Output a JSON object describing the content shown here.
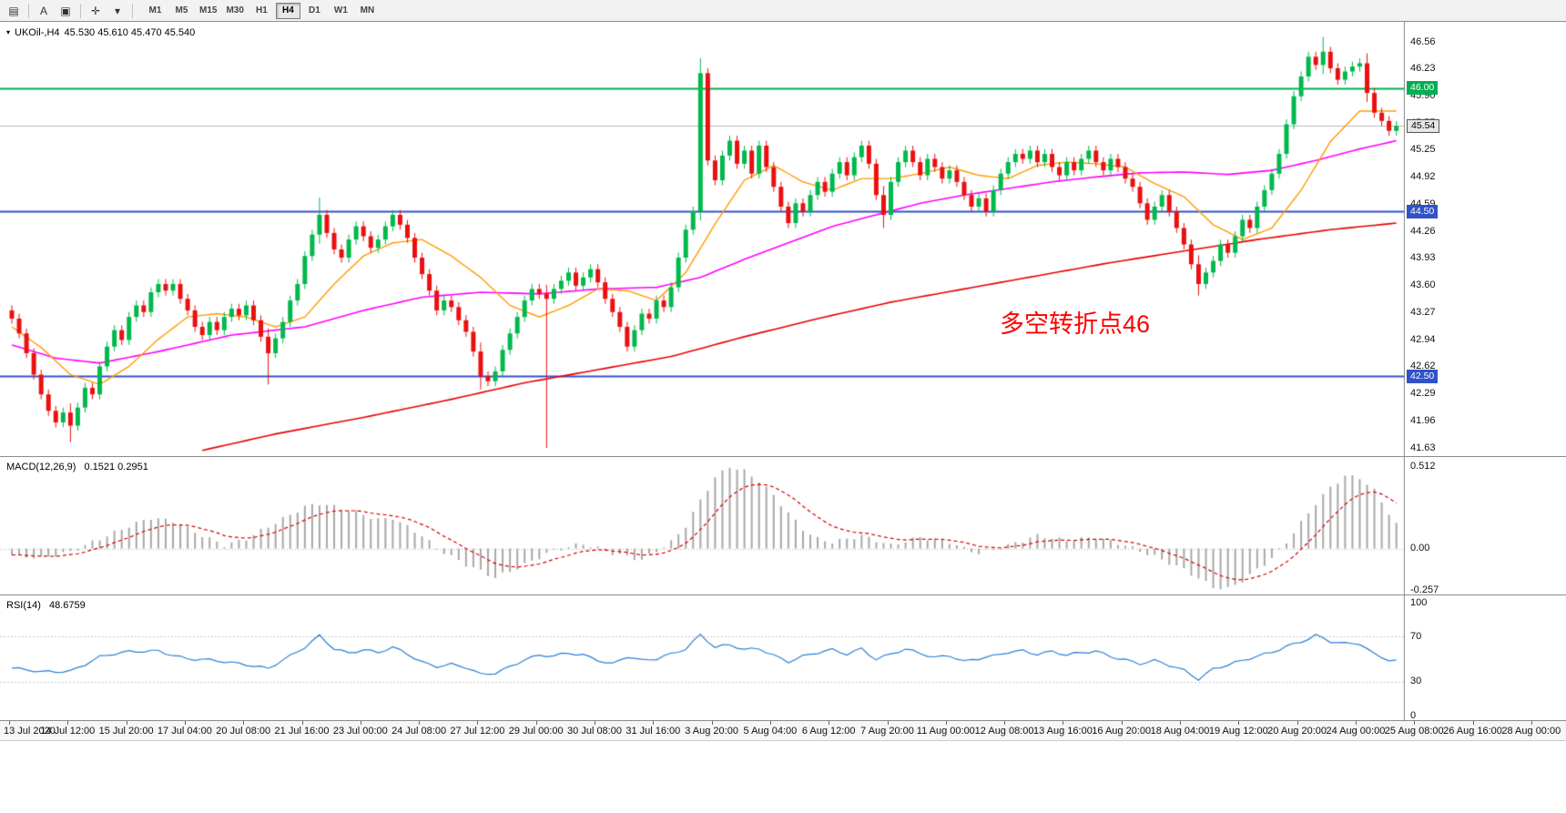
{
  "toolbar": {
    "icons": [
      {
        "name": "grid-icon",
        "glyph": "▤"
      },
      {
        "name": "text-annotation-icon",
        "glyph": "A"
      },
      {
        "name": "frame-tool-icon",
        "glyph": "▣"
      },
      {
        "name": "crosshair-icon",
        "glyph": "✛"
      },
      {
        "name": "dropdown-arrow-icon",
        "glyph": "▾"
      }
    ],
    "timeframes": [
      "M1",
      "M5",
      "M15",
      "M30",
      "H1",
      "H4",
      "D1",
      "W1",
      "MN"
    ],
    "active_timeframe": "H4"
  },
  "chart_header": {
    "symbol": "UKOil-,H4",
    "ohlc": "45.530 45.610 45.470 45.540"
  },
  "annotation": {
    "text": "多空转折点46",
    "color": "#ff0000"
  },
  "price_scale": {
    "labels": [
      "46.56",
      "46.23",
      "45.90",
      "45.57",
      "45.25",
      "44.92",
      "44.59",
      "44.26",
      "43.93",
      "43.60",
      "43.27",
      "42.94",
      "42.62",
      "42.29",
      "41.96",
      "41.63"
    ],
    "tags": [
      {
        "name": "resistance-line-price-tag",
        "text": "46.00",
        "bg": "#00b050",
        "fg": "#ffffff"
      },
      {
        "name": "support-line-price-tag",
        "text": "44.50",
        "bg": "#3052c8",
        "fg": "#ffffff"
      },
      {
        "name": "support-line-price-tag-2",
        "text": "42.50",
        "bg": "#3052c8",
        "fg": "#ffffff"
      },
      {
        "name": "current-price-tag",
        "text": "45.54",
        "bg": "#e6e6e6",
        "fg": "#000000",
        "border": "#555555"
      }
    ]
  },
  "hlines": [
    {
      "price": 46.0,
      "color": "#00b050",
      "width": 2
    },
    {
      "price": 44.5,
      "color": "#3052c8",
      "width": 2
    },
    {
      "price": 42.5,
      "color": "#3052c8",
      "width": 2
    },
    {
      "price": 45.54,
      "color": "#b8b8b8",
      "width": 1
    }
  ],
  "macd_panel": {
    "label": "MACD(12,26,9)",
    "values": "0.1521 0.2951",
    "scale_labels": [
      "0.512",
      "0.00",
      "-0.257"
    ],
    "scale_values": [
      0.512,
      0,
      -0.257
    ]
  },
  "rsi_panel": {
    "label": "RSI(14)",
    "value": "48.6759",
    "scale_labels": [
      "100",
      "70",
      "30",
      "0"
    ],
    "scale_values": [
      100,
      70,
      30,
      0
    ],
    "levels": [
      70,
      30
    ]
  },
  "time_axis": {
    "labels": [
      "13 Jul 2020",
      "14 Jul 12:00",
      "15 Jul 20:00",
      "17 Jul 04:00",
      "20 Jul 08:00",
      "21 Jul 16:00",
      "23 Jul 00:00",
      "24 Jul 08:00",
      "27 Jul 12:00",
      "29 Jul 00:00",
      "30 Jul 08:00",
      "31 Jul 16:00",
      "3 Aug 20:00",
      "5 Aug 04:00",
      "6 Aug 12:00",
      "7 Aug 20:00",
      "11 Aug 00:00",
      "12 Aug 08:00",
      "13 Aug 16:00",
      "16 Aug 20:00",
      "18 Aug 04:00",
      "19 Aug 12:00",
      "20 Aug 20:00",
      "24 Aug 00:00",
      "25 Aug 08:00",
      "26 Aug 16:00",
      "28 Aug 00:00"
    ]
  },
  "colors": {
    "up": "#00b84c",
    "down": "#ea1010",
    "bg": "#ffffff",
    "separator": "#8c8c8c"
  },
  "chart_data": {
    "type": "candlestick",
    "symbol": "UKOil-",
    "timeframe": "H4",
    "current_ohlc": {
      "open": 45.53,
      "high": 45.61,
      "low": 45.47,
      "close": 45.54
    },
    "y_range": [
      41.63,
      46.56
    ],
    "first_open": 43.3,
    "closes": [
      43.2,
      43.02,
      42.78,
      42.52,
      42.28,
      42.08,
      41.94,
      42.06,
      41.9,
      42.12,
      42.36,
      42.28,
      42.62,
      42.86,
      43.06,
      42.94,
      43.22,
      43.36,
      43.28,
      43.52,
      43.62,
      43.54,
      43.62,
      43.44,
      43.3,
      43.1,
      43.0,
      43.16,
      43.06,
      43.22,
      43.32,
      43.24,
      43.36,
      43.18,
      42.98,
      42.78,
      42.96,
      43.16,
      43.42,
      43.62,
      43.96,
      44.22,
      44.46,
      44.24,
      44.04,
      43.94,
      44.16,
      44.32,
      44.2,
      44.06,
      44.16,
      44.32,
      44.46,
      44.34,
      44.18,
      43.94,
      43.74,
      43.54,
      43.3,
      43.42,
      43.34,
      43.18,
      43.04,
      42.8,
      42.5,
      42.44,
      42.56,
      42.82,
      43.02,
      43.22,
      43.42,
      43.56,
      43.5,
      43.44,
      43.56,
      43.66,
      43.76,
      43.6,
      43.7,
      43.8,
      43.64,
      43.44,
      43.28,
      43.1,
      42.86,
      43.06,
      43.26,
      43.2,
      43.42,
      43.34,
      43.58,
      43.94,
      44.28,
      44.5,
      46.18,
      45.12,
      44.88,
      45.18,
      45.36,
      45.08,
      45.24,
      44.96,
      45.3,
      45.04,
      44.8,
      44.56,
      44.36,
      44.6,
      44.5,
      44.7,
      44.86,
      44.74,
      44.96,
      45.1,
      44.94,
      45.16,
      45.3,
      45.08,
      44.7,
      44.46,
      44.86,
      45.1,
      45.24,
      45.1,
      44.94,
      45.14,
      45.04,
      44.9,
      45.0,
      44.86,
      44.7,
      44.56,
      44.66,
      44.5,
      44.76,
      44.96,
      45.1,
      45.2,
      45.14,
      45.24,
      45.1,
      45.2,
      45.04,
      44.94,
      45.1,
      45.0,
      45.14,
      45.24,
      45.1,
      45.0,
      45.14,
      45.04,
      44.9,
      44.8,
      44.6,
      44.4,
      44.56,
      44.7,
      44.5,
      44.3,
      44.1,
      43.86,
      43.62,
      43.76,
      43.9,
      44.1,
      44.0,
      44.2,
      44.4,
      44.3,
      44.56,
      44.76,
      44.96,
      45.2,
      45.56,
      45.9,
      46.14,
      46.38,
      46.28,
      46.44,
      46.24,
      46.1,
      46.2,
      46.26,
      46.3,
      45.94,
      45.7,
      45.6,
      45.48,
      45.54
    ],
    "extra_wicks": {
      "8": [
        0.05,
        0.14
      ],
      "35": [
        0.04,
        0.32
      ],
      "42": [
        0.15,
        0.05
      ],
      "64": [
        0.05,
        0.1
      ],
      "73": [
        0.05,
        1.75
      ],
      "94": [
        0.12,
        0.05
      ],
      "119": [
        0.05,
        0.1
      ],
      "162": [
        0.05,
        0.08
      ],
      "179": [
        0.12,
        0.05
      ],
      "185": [
        0.06,
        0.05
      ]
    },
    "ma_orange": {
      "color": "#ff9a00",
      "points": [
        [
          0,
          43.1
        ],
        [
          4,
          42.85
        ],
        [
          8,
          42.52
        ],
        [
          12,
          42.4
        ],
        [
          16,
          42.62
        ],
        [
          20,
          42.95
        ],
        [
          24,
          43.22
        ],
        [
          28,
          43.26
        ],
        [
          32,
          43.22
        ],
        [
          36,
          43.1
        ],
        [
          40,
          43.22
        ],
        [
          44,
          43.62
        ],
        [
          48,
          43.96
        ],
        [
          52,
          44.12
        ],
        [
          56,
          44.16
        ],
        [
          60,
          43.96
        ],
        [
          64,
          43.7
        ],
        [
          68,
          43.36
        ],
        [
          72,
          43.22
        ],
        [
          76,
          43.36
        ],
        [
          80,
          43.56
        ],
        [
          84,
          43.54
        ],
        [
          88,
          43.42
        ],
        [
          92,
          43.76
        ],
        [
          96,
          44.35
        ],
        [
          100,
          44.88
        ],
        [
          104,
          45.06
        ],
        [
          108,
          44.86
        ],
        [
          112,
          44.76
        ],
        [
          116,
          44.9
        ],
        [
          120,
          44.9
        ],
        [
          124,
          44.96
        ],
        [
          128,
          45.04
        ],
        [
          132,
          44.94
        ],
        [
          136,
          44.9
        ],
        [
          140,
          45.06
        ],
        [
          144,
          45.1
        ],
        [
          148,
          45.08
        ],
        [
          152,
          45.04
        ],
        [
          156,
          44.84
        ],
        [
          160,
          44.68
        ],
        [
          164,
          44.34
        ],
        [
          168,
          44.16
        ],
        [
          172,
          44.3
        ],
        [
          176,
          44.76
        ],
        [
          180,
          45.35
        ],
        [
          184,
          45.72
        ],
        [
          189,
          45.72
        ]
      ]
    },
    "ma_magenta": {
      "color": "#ff00ff",
      "points": [
        [
          0,
          42.88
        ],
        [
          6,
          42.72
        ],
        [
          12,
          42.66
        ],
        [
          20,
          42.8
        ],
        [
          30,
          43.0
        ],
        [
          40,
          43.1
        ],
        [
          48,
          43.3
        ],
        [
          56,
          43.46
        ],
        [
          64,
          43.52
        ],
        [
          72,
          43.5
        ],
        [
          80,
          43.56
        ],
        [
          88,
          43.58
        ],
        [
          94,
          43.7
        ],
        [
          100,
          43.92
        ],
        [
          106,
          44.12
        ],
        [
          112,
          44.32
        ],
        [
          118,
          44.46
        ],
        [
          124,
          44.6
        ],
        [
          130,
          44.7
        ],
        [
          136,
          44.78
        ],
        [
          142,
          44.86
        ],
        [
          148,
          44.92
        ],
        [
          154,
          44.97
        ],
        [
          160,
          44.98
        ],
        [
          166,
          44.95
        ],
        [
          172,
          45.0
        ],
        [
          178,
          45.12
        ],
        [
          184,
          45.26
        ],
        [
          189,
          45.36
        ]
      ]
    },
    "ma_red": {
      "color": "#e80000",
      "points": [
        [
          26,
          41.6
        ],
        [
          36,
          41.8
        ],
        [
          48,
          42.0
        ],
        [
          60,
          42.22
        ],
        [
          70,
          42.42
        ],
        [
          80,
          42.58
        ],
        [
          90,
          42.74
        ],
        [
          100,
          42.98
        ],
        [
          110,
          43.2
        ],
        [
          120,
          43.4
        ],
        [
          130,
          43.56
        ],
        [
          140,
          43.72
        ],
        [
          150,
          43.88
        ],
        [
          160,
          44.02
        ],
        [
          170,
          44.16
        ],
        [
          180,
          44.28
        ],
        [
          189,
          44.36
        ]
      ]
    },
    "macd": {
      "hist_color": "#a8a8a8",
      "signal_color": "#d40000",
      "signal_period": 9,
      "y_range": [
        -0.257,
        0.512
      ],
      "hist_points": [
        [
          0,
          -0.04
        ],
        [
          4,
          -0.06
        ],
        [
          8,
          -0.02
        ],
        [
          12,
          0.06
        ],
        [
          16,
          0.14
        ],
        [
          19,
          0.19
        ],
        [
          22,
          0.17
        ],
        [
          26,
          0.08
        ],
        [
          29,
          0.02
        ],
        [
          32,
          0.06
        ],
        [
          36,
          0.16
        ],
        [
          40,
          0.26
        ],
        [
          42,
          0.28
        ],
        [
          46,
          0.24
        ],
        [
          50,
          0.18
        ],
        [
          52,
          0.19
        ],
        [
          56,
          0.08
        ],
        [
          58,
          0
        ],
        [
          62,
          -0.1
        ],
        [
          66,
          -0.18
        ],
        [
          70,
          -0.1
        ],
        [
          74,
          -0.01
        ],
        [
          78,
          0.03
        ],
        [
          82,
          -0.03
        ],
        [
          86,
          -0.07
        ],
        [
          90,
          0.04
        ],
        [
          92,
          0.14
        ],
        [
          94,
          0.3
        ],
        [
          96,
          0.44
        ],
        [
          98,
          0.51
        ],
        [
          100,
          0.48
        ],
        [
          102,
          0.42
        ],
        [
          104,
          0.33
        ],
        [
          106,
          0.22
        ],
        [
          108,
          0.12
        ],
        [
          110,
          0.06
        ],
        [
          112,
          0.04
        ],
        [
          116,
          0.08
        ],
        [
          120,
          0.02
        ],
        [
          124,
          0.07
        ],
        [
          128,
          0.04
        ],
        [
          130,
          0
        ],
        [
          132,
          -0.03
        ],
        [
          136,
          0.02
        ],
        [
          140,
          0.08
        ],
        [
          144,
          0.05
        ],
        [
          148,
          0.07
        ],
        [
          152,
          0.02
        ],
        [
          156,
          -0.05
        ],
        [
          160,
          -0.13
        ],
        [
          164,
          -0.24
        ],
        [
          166,
          -0.25
        ],
        [
          168,
          -0.2
        ],
        [
          172,
          -0.06
        ],
        [
          174,
          0.04
        ],
        [
          176,
          0.16
        ],
        [
          178,
          0.28
        ],
        [
          180,
          0.38
        ],
        [
          182,
          0.45
        ],
        [
          184,
          0.44
        ],
        [
          186,
          0.36
        ],
        [
          188,
          0.22
        ],
        [
          189,
          0.15
        ]
      ]
    },
    "rsi": {
      "color": "#2a7fd4",
      "y_range": [
        0,
        100
      ],
      "points": [
        [
          0,
          42
        ],
        [
          4,
          38
        ],
        [
          8,
          40
        ],
        [
          12,
          52
        ],
        [
          16,
          56
        ],
        [
          20,
          58
        ],
        [
          24,
          50
        ],
        [
          28,
          48
        ],
        [
          32,
          46
        ],
        [
          35,
          42
        ],
        [
          38,
          52
        ],
        [
          40,
          60
        ],
        [
          42,
          71
        ],
        [
          44,
          60
        ],
        [
          46,
          56
        ],
        [
          48,
          58
        ],
        [
          50,
          55
        ],
        [
          52,
          60
        ],
        [
          54,
          55
        ],
        [
          56,
          48
        ],
        [
          58,
          44
        ],
        [
          60,
          45
        ],
        [
          62,
          42
        ],
        [
          64,
          36
        ],
        [
          66,
          38
        ],
        [
          68,
          44
        ],
        [
          70,
          50
        ],
        [
          72,
          53
        ],
        [
          74,
          52
        ],
        [
          76,
          55
        ],
        [
          78,
          54
        ],
        [
          80,
          50
        ],
        [
          82,
          46
        ],
        [
          84,
          52
        ],
        [
          86,
          48
        ],
        [
          88,
          50
        ],
        [
          90,
          55
        ],
        [
          92,
          60
        ],
        [
          94,
          72
        ],
        [
          96,
          60
        ],
        [
          98,
          62
        ],
        [
          100,
          58
        ],
        [
          102,
          60
        ],
        [
          104,
          54
        ],
        [
          106,
          48
        ],
        [
          108,
          52
        ],
        [
          110,
          55
        ],
        [
          112,
          58
        ],
        [
          114,
          55
        ],
        [
          116,
          60
        ],
        [
          118,
          50
        ],
        [
          120,
          54
        ],
        [
          122,
          58
        ],
        [
          124,
          55
        ],
        [
          126,
          52
        ],
        [
          128,
          54
        ],
        [
          130,
          48
        ],
        [
          132,
          50
        ],
        [
          134,
          52
        ],
        [
          136,
          56
        ],
        [
          138,
          58
        ],
        [
          140,
          55
        ],
        [
          142,
          57
        ],
        [
          144,
          53
        ],
        [
          146,
          55
        ],
        [
          148,
          57
        ],
        [
          150,
          53
        ],
        [
          152,
          50
        ],
        [
          154,
          46
        ],
        [
          156,
          48
        ],
        [
          158,
          44
        ],
        [
          160,
          40
        ],
        [
          162,
          33
        ],
        [
          164,
          42
        ],
        [
          166,
          45
        ],
        [
          168,
          48
        ],
        [
          170,
          52
        ],
        [
          172,
          56
        ],
        [
          174,
          62
        ],
        [
          176,
          66
        ],
        [
          178,
          71
        ],
        [
          180,
          65
        ],
        [
          182,
          63
        ],
        [
          184,
          64
        ],
        [
          186,
          55
        ],
        [
          188,
          50
        ],
        [
          189,
          48.7
        ]
      ]
    }
  }
}
